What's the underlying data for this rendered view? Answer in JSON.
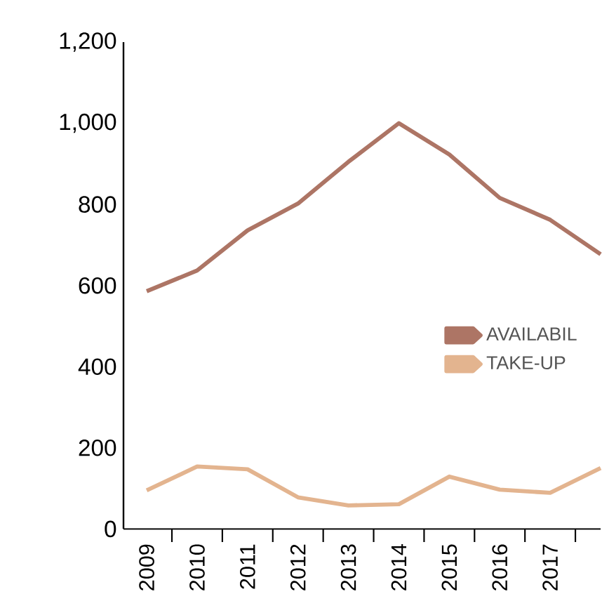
{
  "chart_data": {
    "type": "line",
    "categories": [
      "2009",
      "2010",
      "2011",
      "2012",
      "2013",
      "2014",
      "2015",
      "2016",
      "2017",
      null
    ],
    "series": [
      {
        "name": "AVAILABIL",
        "color": "#ad7565",
        "values": [
          586,
          637,
          736,
          802,
          905,
          1000,
          923,
          816,
          762,
          677
        ]
      },
      {
        "name": "TAKE-UP",
        "color": "#e3b48f",
        "values": [
          95,
          154,
          147,
          78,
          58,
          61,
          129,
          97,
          89,
          150
        ]
      }
    ],
    "ylim": [
      0,
      1200
    ],
    "yticks": [
      0,
      200,
      400,
      600,
      800,
      {
        "value": 1000,
        "label": "1,000"
      },
      {
        "value": 1200,
        "label": "1,200"
      }
    ],
    "grid": false,
    "legend": "right",
    "marker": "none",
    "line_style": "solid"
  }
}
